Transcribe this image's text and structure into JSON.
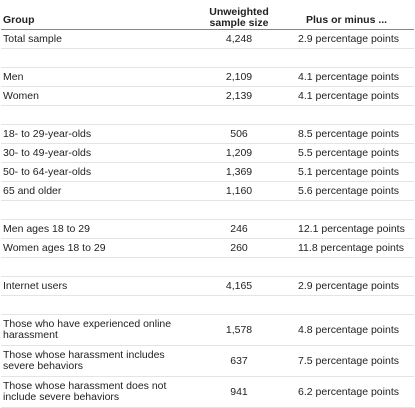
{
  "header": {
    "group": "Group",
    "sample": "Unweighted sample size",
    "moe": "Plus or minus ..."
  },
  "groups": [
    [
      [
        "Total sample",
        "4,248",
        "2.9 percentage points"
      ]
    ],
    [
      [
        "Men",
        "2,109",
        "4.1 percentage points"
      ],
      [
        "Women",
        "2,139",
        "4.1 percentage points"
      ]
    ],
    [
      [
        "18- to 29-year-olds",
        "506",
        "8.5 percentage points"
      ],
      [
        "30- to 49-year-olds",
        "1,209",
        "5.5 percentage points"
      ],
      [
        "50- to 64-year-olds",
        "1,369",
        "5.1 percentage points"
      ],
      [
        "65 and older",
        "1,160",
        "5.6 percentage points"
      ]
    ],
    [
      [
        "Men ages 18 to 29",
        "246",
        "12.1 percentage points"
      ],
      [
        "Women ages 18 to 29",
        "260",
        "11.8 percentage points"
      ]
    ],
    [
      [
        "Internet users",
        "4,165",
        "2.9 percentage points"
      ]
    ],
    [
      [
        "Those who have experienced online harassment",
        "1,578",
        "4.8 percentage points"
      ],
      [
        "Those whose harassment includes severe behaviors",
        "637",
        "7.5 percentage points"
      ],
      [
        "Those whose harassment does not include severe behaviors",
        "941",
        "6.2 percentage points"
      ]
    ]
  ]
}
